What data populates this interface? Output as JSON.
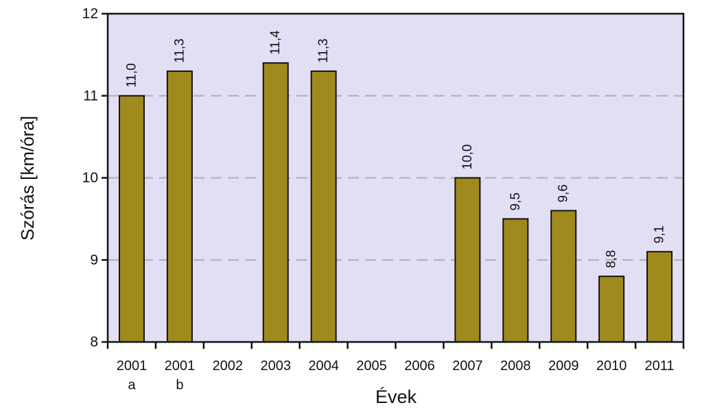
{
  "chart_data": {
    "type": "bar",
    "categories": [
      "2001",
      "2001",
      "2002",
      "2003",
      "2004",
      "2005",
      "2006",
      "2007",
      "2008",
      "2009",
      "2010",
      "2011"
    ],
    "category_sublabels": [
      "a",
      "b",
      "",
      "",
      "",
      "",
      "",
      "",
      "",
      "",
      "",
      ""
    ],
    "values": [
      11.0,
      11.3,
      null,
      11.4,
      11.3,
      null,
      null,
      10.0,
      9.5,
      9.6,
      8.8,
      9.1
    ],
    "data_labels": [
      "11,0",
      "11,3",
      "",
      "11,4",
      "11,3",
      "",
      "",
      "10,0",
      "9,5",
      "9,6",
      "8,8",
      "9,1"
    ],
    "title": "",
    "xlabel": "Évek",
    "ylabel": "Szórás [km/óra]",
    "ylim": [
      8,
      12
    ],
    "yticks": [
      8,
      9,
      10,
      11,
      12
    ],
    "ytick_labels": [
      "8",
      "9",
      "10",
      "11",
      "12"
    ],
    "grid": "horizontal dashed at 9, 10, 11",
    "legend": "none",
    "colors": {
      "plot_background": "#e2dff5",
      "bar_fill": "#a08a1e",
      "bar_stroke": "#111111",
      "grid": "#b8b3aa",
      "axis": "#111111"
    }
  }
}
